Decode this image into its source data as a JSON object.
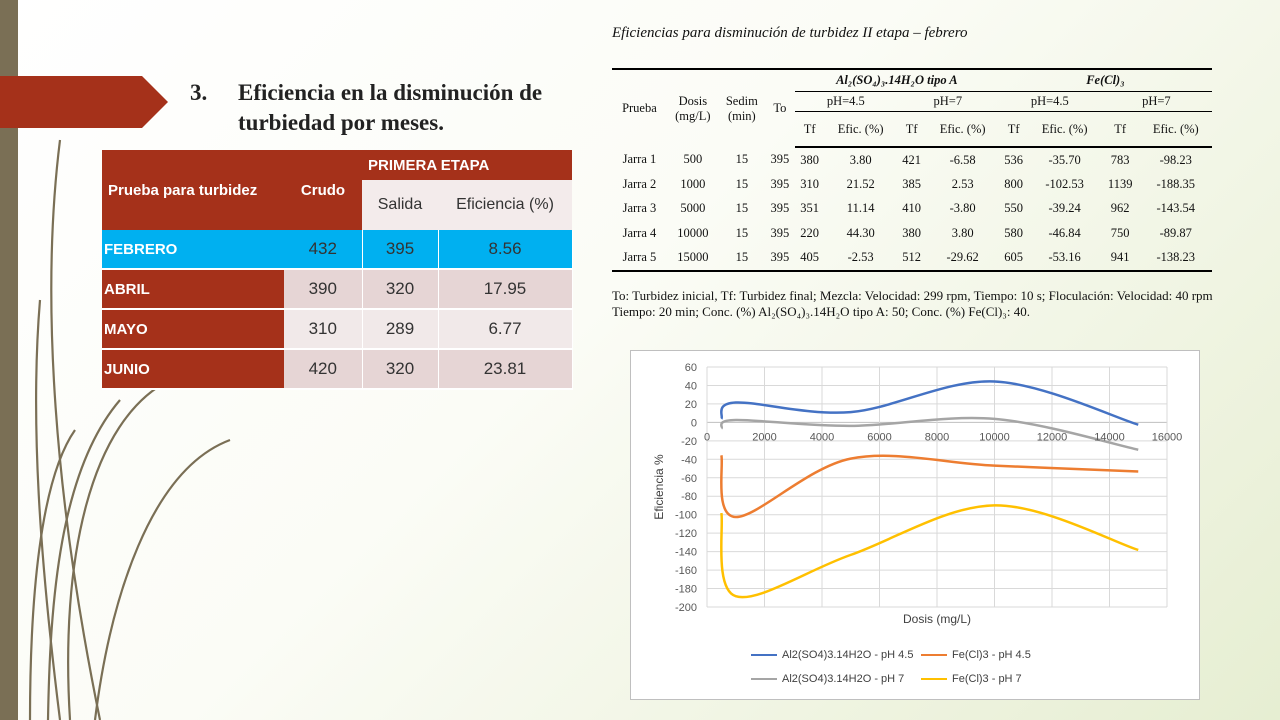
{
  "slide": {
    "number": "3.",
    "title": "Eficiencia en la disminución de turbiedad por meses."
  },
  "month_table": {
    "col_label": "Prueba para turbidez",
    "col_crudo": "Crudo",
    "group": "PRIMERA ETAPA",
    "col_salida": "Salida",
    "col_eficiencia": "Eficiencia (%)",
    "rows": [
      {
        "label": "FEBRERO",
        "crudo": "432",
        "salida": "395",
        "eficiencia": "8.56",
        "label_bg": "#00b0f0",
        "val_bg": "#00b0f0"
      },
      {
        "label": "ABRIL",
        "crudo": "390",
        "salida": "320",
        "eficiencia": "17.95",
        "label_bg": "#a5311a",
        "val_bg": "#e6d5d5"
      },
      {
        "label": "MAYO",
        "crudo": "310",
        "salida": "289",
        "eficiencia": "6.77",
        "label_bg": "#a5311a",
        "val_bg": "#f1e9e9"
      },
      {
        "label": "JUNIO",
        "crudo": "420",
        "salida": "320",
        "eficiencia": "23.81",
        "label_bg": "#a5311a",
        "val_bg": "#e6d5d5"
      }
    ]
  },
  "jar_table": {
    "caption": "Eficiencias para disminución de turbidez II etapa – febrero",
    "h_prueba": "Prueba",
    "h_dosis": "Dosis (mg/L)",
    "h_sedim": "Sedim (min)",
    "h_to": "To",
    "h_al": "Al₂(SO₄)₃.14H₂O tipo A",
    "h_fe": "Fe(Cl)₃",
    "h_ph45": "pH=4.5",
    "h_ph7": "pH=7",
    "h_tf": "Tf",
    "h_efic": "Efic. (%)",
    "rows": [
      [
        "Jarra 1",
        "500",
        "15",
        "395",
        "380",
        "3.80",
        "421",
        "-6.58",
        "536",
        "-35.70",
        "783",
        "-98.23"
      ],
      [
        "Jarra 2",
        "1000",
        "15",
        "395",
        "310",
        "21.52",
        "385",
        "2.53",
        "800",
        "-102.53",
        "1139",
        "-188.35"
      ],
      [
        "Jarra 3",
        "5000",
        "15",
        "395",
        "351",
        "11.14",
        "410",
        "-3.80",
        "550",
        "-39.24",
        "962",
        "-143.54"
      ],
      [
        "Jarra 4",
        "10000",
        "15",
        "395",
        "220",
        "44.30",
        "380",
        "3.80",
        "580",
        "-46.84",
        "750",
        "-89.87"
      ],
      [
        "Jarra 5",
        "15000",
        "15",
        "395",
        "405",
        "-2.53",
        "512",
        "-29.62",
        "605",
        "-53.16",
        "941",
        "-138.23"
      ]
    ],
    "note": "To: Turbidez inicial, Tf: Turbidez final; Mezcla: Velocidad: 299 rpm, Tiempo: 10 s; Floculación: Velocidad: 40 rpm Tiempo: 20 min; Conc. (%) Al₂(SO₄)₃.14H₂O tipo A: 50; Conc. (%) Fe(Cl)₃: 40."
  },
  "chart_data": {
    "type": "line",
    "smooth": true,
    "title": "",
    "xlabel": "Dosis (mg/L)",
    "ylabel": "Eficiencia %",
    "xlim": [
      0,
      16000
    ],
    "ylim": [
      -200,
      60
    ],
    "xticks": [
      0,
      2000,
      4000,
      6000,
      8000,
      10000,
      12000,
      14000,
      16000
    ],
    "yticks": [
      60,
      40,
      20,
      0,
      -20,
      -40,
      -60,
      -80,
      -100,
      -120,
      -140,
      -160,
      -180,
      -200
    ],
    "grid": true,
    "legend_position": "bottom",
    "x": [
      500,
      1000,
      5000,
      10000,
      15000
    ],
    "series": [
      {
        "name": "Al2(SO4)3.14H2O - pH 4.5",
        "color": "#4472c4",
        "values": [
          3.8,
          21.52,
          11.14,
          44.3,
          -2.53
        ]
      },
      {
        "name": "Fe(Cl)3 - pH 4.5",
        "color": "#ed7d31",
        "values": [
          -35.7,
          -102.53,
          -39.24,
          -46.84,
          -53.16
        ]
      },
      {
        "name": "Al2(SO4)3.14H2O - pH 7",
        "color": "#a5a5a5",
        "values": [
          -6.58,
          2.53,
          -3.8,
          3.8,
          -29.62
        ]
      },
      {
        "name": "Fe(Cl)3 - pH 7",
        "color": "#ffc000",
        "values": [
          -98.23,
          -188.35,
          -143.54,
          -89.87,
          -138.23
        ]
      }
    ]
  }
}
